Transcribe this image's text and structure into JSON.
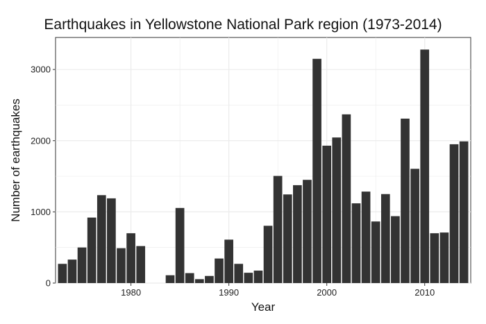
{
  "chart_data": {
    "type": "bar",
    "title": "Earthquakes in Yellowstone National Park region (1973-2014)",
    "xlabel": "Year",
    "ylabel": "Number of earthquakes",
    "xlim": [
      1972.3,
      2014.7
    ],
    "ylim": [
      0,
      3450
    ],
    "x_ticks": [
      1980,
      1990,
      2000,
      2010
    ],
    "y_ticks": [
      0,
      1000,
      2000,
      3000
    ],
    "grid": true,
    "bar_color": "#333333",
    "grid_color": "#ebebeb",
    "x": [
      1973,
      1974,
      1975,
      1976,
      1977,
      1978,
      1979,
      1980,
      1981,
      1982,
      1983,
      1984,
      1985,
      1986,
      1987,
      1988,
      1989,
      1990,
      1991,
      1992,
      1993,
      1994,
      1995,
      1996,
      1997,
      1998,
      1999,
      2000,
      2001,
      2002,
      2003,
      2004,
      2005,
      2006,
      2007,
      2008,
      2009,
      2010,
      2011,
      2012,
      2013,
      2014
    ],
    "values": [
      270,
      330,
      500,
      920,
      1235,
      1190,
      490,
      700,
      520,
      0,
      0,
      110,
      1055,
      140,
      55,
      100,
      345,
      610,
      270,
      145,
      175,
      805,
      1505,
      1245,
      1375,
      1450,
      3150,
      1930,
      2045,
      2370,
      1120,
      1285,
      865,
      1250,
      940,
      2310,
      1605,
      3280,
      700,
      710,
      1950,
      1990
    ]
  }
}
